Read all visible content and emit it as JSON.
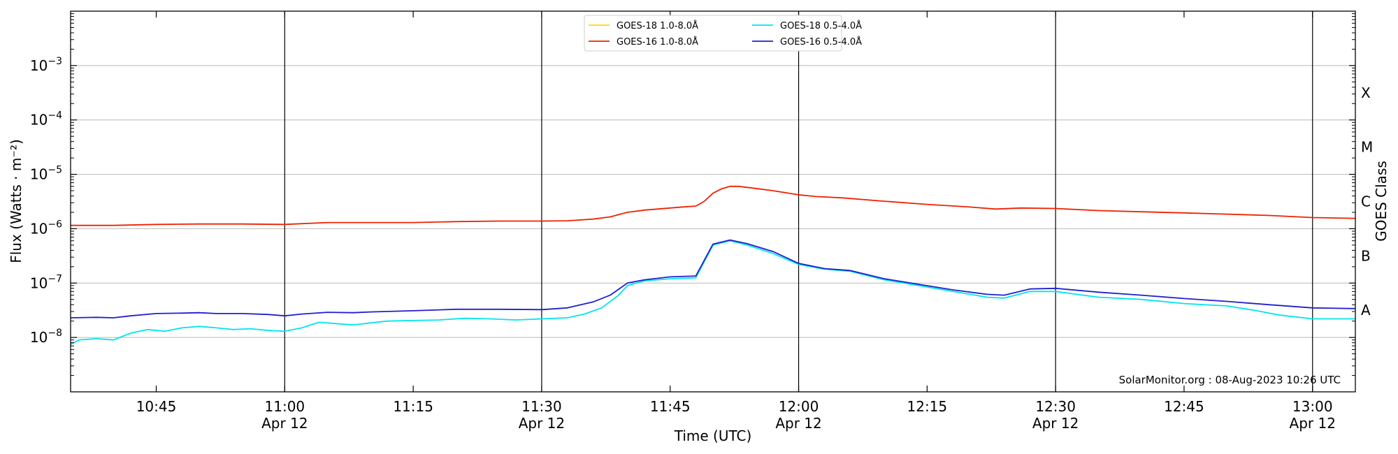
{
  "chart_data": {
    "type": "line",
    "xlabel": "Time (UTC)",
    "ylabel": "Flux (Watts · m⁻²)",
    "right_ylabel": "GOES Class",
    "credit": "SolarMonitor.org : 08-Aug-2023 10:26 UTC",
    "yscale": "log",
    "ylim": [
      1e-09,
      0.01
    ],
    "xlim": [
      "10:35",
      "13:05"
    ],
    "grid": {
      "horizontal": true,
      "vertical_at_half_hours": true
    },
    "legend_position": "top-center",
    "y_ticks": [
      {
        "exp": "-8",
        "value": 1e-08
      },
      {
        "exp": "-7",
        "value": 1e-07
      },
      {
        "exp": "-6",
        "value": 1e-06
      },
      {
        "exp": "-5",
        "value": 1e-05
      },
      {
        "exp": "-4",
        "value": 0.0001
      },
      {
        "exp": "-3",
        "value": 0.001
      }
    ],
    "x_ticks": [
      {
        "time": "10:45",
        "label": "10:45",
        "date": ""
      },
      {
        "time": "11:00",
        "label": "11:00",
        "date": "Apr 12"
      },
      {
        "time": "11:15",
        "label": "11:15",
        "date": ""
      },
      {
        "time": "11:30",
        "label": "11:30",
        "date": "Apr 12"
      },
      {
        "time": "11:45",
        "label": "11:45",
        "date": ""
      },
      {
        "time": "12:00",
        "label": "12:00",
        "date": "Apr 12"
      },
      {
        "time": "12:15",
        "label": "12:15",
        "date": ""
      },
      {
        "time": "12:30",
        "label": "12:30",
        "date": "Apr 12"
      },
      {
        "time": "12:45",
        "label": "12:45",
        "date": ""
      },
      {
        "time": "13:00",
        "label": "13:00",
        "date": "Apr 12"
      }
    ],
    "goes_classes": [
      {
        "label": "A",
        "value": 3.16e-08
      },
      {
        "label": "B",
        "value": 3.16e-07
      },
      {
        "label": "C",
        "value": 3.16e-06
      },
      {
        "label": "M",
        "value": 3.16e-05
      },
      {
        "label": "X",
        "value": 0.000316
      }
    ],
    "series": [
      {
        "name": "GOES-18 1.0-8.0Å",
        "color": "#ffd700",
        "points": []
      },
      {
        "name": "GOES-16 1.0-8.0Å",
        "color": "#ee2200",
        "points": [
          [
            "10:35",
            1.15e-06
          ],
          [
            "10:40",
            1.15e-06
          ],
          [
            "10:45",
            1.2e-06
          ],
          [
            "10:50",
            1.22e-06
          ],
          [
            "10:55",
            1.22e-06
          ],
          [
            "11:00",
            1.2e-06
          ],
          [
            "11:05",
            1.3e-06
          ],
          [
            "11:10",
            1.3e-06
          ],
          [
            "11:15",
            1.3e-06
          ],
          [
            "11:20",
            1.35e-06
          ],
          [
            "11:25",
            1.38e-06
          ],
          [
            "11:30",
            1.38e-06
          ],
          [
            "11:33",
            1.4e-06
          ],
          [
            "11:36",
            1.5e-06
          ],
          [
            "11:38",
            1.65e-06
          ],
          [
            "11:40",
            2e-06
          ],
          [
            "11:42",
            2.2e-06
          ],
          [
            "11:45",
            2.4e-06
          ],
          [
            "11:47",
            2.55e-06
          ],
          [
            "11:48",
            2.6e-06
          ],
          [
            "11:49",
            3.2e-06
          ],
          [
            "11:50",
            4.5e-06
          ],
          [
            "11:51",
            5.4e-06
          ],
          [
            "11:52",
            6e-06
          ],
          [
            "11:53",
            6e-06
          ],
          [
            "11:55",
            5.5e-06
          ],
          [
            "11:57",
            5e-06
          ],
          [
            "12:00",
            4.2e-06
          ],
          [
            "12:02",
            3.9e-06
          ],
          [
            "12:05",
            3.7e-06
          ],
          [
            "12:10",
            3.2e-06
          ],
          [
            "12:15",
            2.8e-06
          ],
          [
            "12:20",
            2.5e-06
          ],
          [
            "12:23",
            2.3e-06
          ],
          [
            "12:26",
            2.4e-06
          ],
          [
            "12:30",
            2.35e-06
          ],
          [
            "12:35",
            2.15e-06
          ],
          [
            "12:40",
            2.05e-06
          ],
          [
            "12:45",
            1.95e-06
          ],
          [
            "12:50",
            1.85e-06
          ],
          [
            "12:55",
            1.75e-06
          ],
          [
            "13:00",
            1.6e-06
          ],
          [
            "13:05",
            1.55e-06
          ]
        ]
      },
      {
        "name": "GOES-18 0.5-4.0Å",
        "color": "#00e5ee",
        "points": [
          [
            "10:35",
            7.5e-09
          ],
          [
            "10:36",
            9e-09
          ],
          [
            "10:38",
            9.5e-09
          ],
          [
            "10:40",
            9e-09
          ],
          [
            "10:42",
            1.2e-08
          ],
          [
            "10:44",
            1.4e-08
          ],
          [
            "10:46",
            1.3e-08
          ],
          [
            "10:48",
            1.5e-08
          ],
          [
            "10:50",
            1.6e-08
          ],
          [
            "10:52",
            1.5e-08
          ],
          [
            "10:54",
            1.4e-08
          ],
          [
            "10:56",
            1.45e-08
          ],
          [
            "10:58",
            1.35e-08
          ],
          [
            "11:00",
            1.3e-08
          ],
          [
            "11:02",
            1.5e-08
          ],
          [
            "11:04",
            1.9e-08
          ],
          [
            "11:06",
            1.8e-08
          ],
          [
            "11:08",
            1.7e-08
          ],
          [
            "11:10",
            1.85e-08
          ],
          [
            "11:12",
            2e-08
          ],
          [
            "11:15",
            2.05e-08
          ],
          [
            "11:18",
            2.1e-08
          ],
          [
            "11:21",
            2.25e-08
          ],
          [
            "11:24",
            2.2e-08
          ],
          [
            "11:27",
            2.1e-08
          ],
          [
            "11:30",
            2.2e-08
          ],
          [
            "11:33",
            2.3e-08
          ],
          [
            "11:35",
            2.7e-08
          ],
          [
            "11:37",
            3.5e-08
          ],
          [
            "11:39",
            6e-08
          ],
          [
            "11:40",
            9e-08
          ],
          [
            "11:42",
            1.1e-07
          ],
          [
            "11:45",
            1.2e-07
          ],
          [
            "11:48",
            1.25e-07
          ],
          [
            "11:50",
            5e-07
          ],
          [
            "11:52",
            6e-07
          ],
          [
            "11:54",
            5e-07
          ],
          [
            "11:57",
            3.5e-07
          ],
          [
            "12:00",
            2.2e-07
          ],
          [
            "12:03",
            1.8e-07
          ],
          [
            "12:06",
            1.65e-07
          ],
          [
            "12:10",
            1.15e-07
          ],
          [
            "12:14",
            9e-08
          ],
          [
            "12:18",
            7e-08
          ],
          [
            "12:22",
            5.5e-08
          ],
          [
            "12:24",
            5.3e-08
          ],
          [
            "12:27",
            7e-08
          ],
          [
            "12:30",
            7e-08
          ],
          [
            "12:35",
            5.5e-08
          ],
          [
            "12:40",
            5e-08
          ],
          [
            "12:45",
            4.2e-08
          ],
          [
            "12:50",
            3.8e-08
          ],
          [
            "12:53",
            3.2e-08
          ],
          [
            "12:56",
            2.6e-08
          ],
          [
            "13:00",
            2.2e-08
          ],
          [
            "13:05",
            2.2e-08
          ]
        ]
      },
      {
        "name": "GOES-16 0.5-4.0Å",
        "color": "#1f1fd0",
        "points": [
          [
            "10:35",
            2.3e-08
          ],
          [
            "10:38",
            2.35e-08
          ],
          [
            "10:40",
            2.3e-08
          ],
          [
            "10:42",
            2.5e-08
          ],
          [
            "10:45",
            2.75e-08
          ],
          [
            "10:48",
            2.8e-08
          ],
          [
            "10:50",
            2.85e-08
          ],
          [
            "10:52",
            2.75e-08
          ],
          [
            "10:55",
            2.75e-08
          ],
          [
            "10:58",
            2.65e-08
          ],
          [
            "11:00",
            2.5e-08
          ],
          [
            "11:02",
            2.7e-08
          ],
          [
            "11:05",
            2.9e-08
          ],
          [
            "11:08",
            2.85e-08
          ],
          [
            "11:10",
            2.95e-08
          ],
          [
            "11:15",
            3.1e-08
          ],
          [
            "11:20",
            3.3e-08
          ],
          [
            "11:25",
            3.3e-08
          ],
          [
            "11:30",
            3.25e-08
          ],
          [
            "11:33",
            3.5e-08
          ],
          [
            "11:36",
            4.5e-08
          ],
          [
            "11:38",
            6e-08
          ],
          [
            "11:40",
            1e-07
          ],
          [
            "11:42",
            1.15e-07
          ],
          [
            "11:45",
            1.3e-07
          ],
          [
            "11:48",
            1.35e-07
          ],
          [
            "11:50",
            5.2e-07
          ],
          [
            "11:52",
            6.2e-07
          ],
          [
            "11:54",
            5.3e-07
          ],
          [
            "11:57",
            3.8e-07
          ],
          [
            "12:00",
            2.3e-07
          ],
          [
            "12:03",
            1.85e-07
          ],
          [
            "12:06",
            1.7e-07
          ],
          [
            "12:10",
            1.2e-07
          ],
          [
            "12:14",
            9.5e-08
          ],
          [
            "12:18",
            7.5e-08
          ],
          [
            "12:22",
            6.2e-08
          ],
          [
            "12:24",
            6e-08
          ],
          [
            "12:27",
            7.8e-08
          ],
          [
            "12:30",
            8e-08
          ],
          [
            "12:35",
            6.8e-08
          ],
          [
            "12:40",
            6e-08
          ],
          [
            "12:45",
            5.2e-08
          ],
          [
            "12:50",
            4.6e-08
          ],
          [
            "12:55",
            4e-08
          ],
          [
            "13:00",
            3.5e-08
          ],
          [
            "13:05",
            3.4e-08
          ]
        ]
      }
    ]
  }
}
